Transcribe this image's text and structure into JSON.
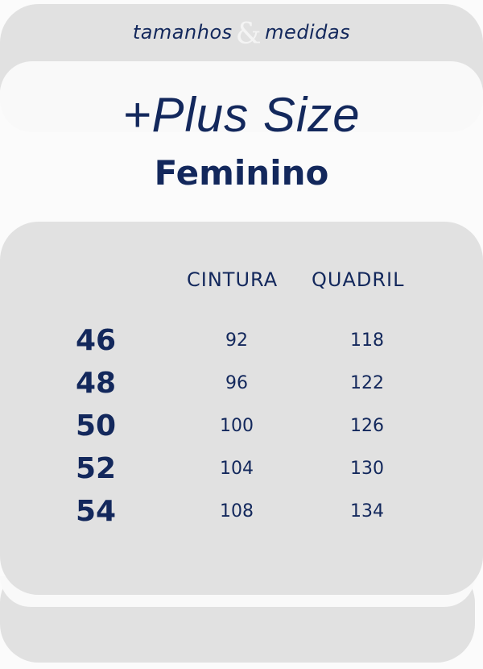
{
  "header": {
    "subtitle_left": "tamanhos",
    "ampersand": "&",
    "subtitle_right": "medidas",
    "title": "+Plus Size",
    "category": "Feminino"
  },
  "table": {
    "columns": [
      "CINTURA",
      "QUADRIL"
    ],
    "rows": [
      {
        "size": "46",
        "cintura": "92",
        "quadril": "118"
      },
      {
        "size": "48",
        "cintura": "96",
        "quadril": "122"
      },
      {
        "size": "50",
        "cintura": "100",
        "quadril": "126"
      },
      {
        "size": "52",
        "cintura": "104",
        "quadril": "130"
      },
      {
        "size": "54",
        "cintura": "108",
        "quadril": "134"
      }
    ]
  },
  "colors": {
    "text": "#13285c",
    "card": "#e1e1e1",
    "background": "#fbfbfb"
  }
}
